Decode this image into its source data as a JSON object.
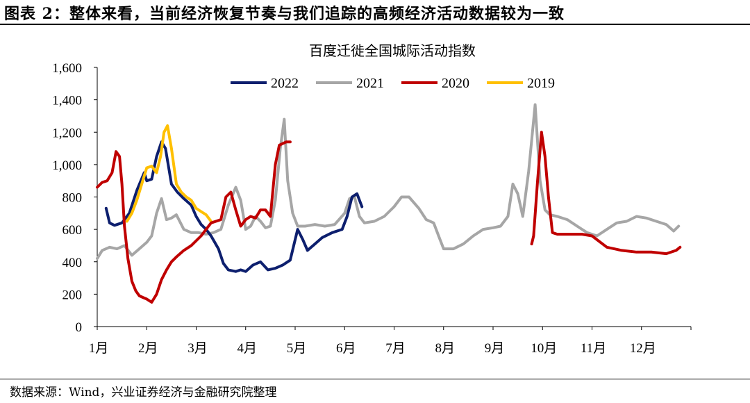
{
  "figure": {
    "title": "图表 2：整体来看，当前经济恢复节奏与我们追踪的高频经济活动数据较为一致",
    "source": "数据来源：Wind，兴业证券经济与金融研究院整理"
  },
  "chart_data": {
    "type": "line",
    "title": "百度迁徙全国城际活动指数",
    "xlabel": "",
    "ylabel": "",
    "ylim": [
      0,
      1600
    ],
    "xlim": [
      1,
      13
    ],
    "yticks": [
      0,
      200,
      400,
      600,
      800,
      1000,
      1200,
      1400,
      1600
    ],
    "ytick_labels": [
      "0",
      "200",
      "400",
      "600",
      "800",
      "1,000",
      "1,200",
      "1,400",
      "1,600"
    ],
    "xticks": [
      1,
      2,
      3,
      4,
      5,
      6,
      7,
      8,
      9,
      10,
      11,
      12,
      13
    ],
    "xtick_labels": [
      "1月",
      "2月",
      "3月",
      "4月",
      "5月",
      "6月",
      "7月",
      "8月",
      "9月",
      "10月",
      "11月",
      "12月",
      ""
    ],
    "legend_position": "top-center",
    "grid": false,
    "series": [
      {
        "name": "2022",
        "color": "#0d1f6e",
        "x": [
          1.18,
          1.25,
          1.35,
          1.5,
          1.65,
          1.8,
          1.95,
          2.0,
          2.1,
          2.2,
          2.3,
          2.38,
          2.5,
          2.62,
          2.75,
          2.9,
          3.0,
          3.1,
          3.2,
          3.3,
          3.45,
          3.55,
          3.65,
          3.8,
          3.9,
          4.0,
          4.15,
          4.3,
          4.45,
          4.6,
          4.75,
          4.9,
          5.05,
          5.15,
          5.25,
          5.4,
          5.55,
          5.75,
          5.95,
          6.05,
          6.15,
          6.25,
          6.35
        ],
        "y": [
          730,
          640,
          625,
          640,
          700,
          840,
          950,
          900,
          910,
          1050,
          1140,
          1100,
          880,
          830,
          790,
          750,
          680,
          630,
          600,
          560,
          480,
          390,
          350,
          340,
          350,
          340,
          380,
          400,
          350,
          360,
          380,
          410,
          600,
          540,
          470,
          510,
          550,
          580,
          600,
          680,
          800,
          820,
          740
        ]
      },
      {
        "name": "2021",
        "color": "#a6a6a6",
        "x": [
          1.0,
          1.1,
          1.25,
          1.4,
          1.55,
          1.7,
          1.85,
          2.0,
          2.1,
          2.2,
          2.3,
          2.4,
          2.5,
          2.6,
          2.75,
          2.9,
          3.05,
          3.2,
          3.35,
          3.5,
          3.65,
          3.8,
          3.9,
          4.0,
          4.1,
          4.2,
          4.3,
          4.4,
          4.5,
          4.6,
          4.7,
          4.78,
          4.85,
          4.95,
          5.05,
          5.2,
          5.4,
          5.6,
          5.8,
          6.0,
          6.1,
          6.2,
          6.3,
          6.4,
          6.6,
          6.8,
          7.0,
          7.15,
          7.3,
          7.5,
          7.65,
          7.8,
          7.9,
          8.0,
          8.2,
          8.4,
          8.6,
          8.8,
          9.0,
          9.15,
          9.3,
          9.4,
          9.5,
          9.6,
          9.72,
          9.85,
          9.95,
          10.05,
          10.15,
          10.3,
          10.5,
          10.7,
          10.9,
          11.1,
          11.3,
          11.5,
          11.7,
          11.9,
          12.1,
          12.3,
          12.5,
          12.65,
          12.75
        ],
        "y": [
          420,
          470,
          490,
          480,
          500,
          440,
          480,
          520,
          560,
          700,
          790,
          660,
          670,
          690,
          600,
          580,
          580,
          570,
          580,
          600,
          750,
          860,
          780,
          600,
          620,
          680,
          650,
          610,
          620,
          780,
          1100,
          1280,
          900,
          700,
          620,
          620,
          630,
          620,
          630,
          700,
          790,
          800,
          680,
          640,
          650,
          680,
          740,
          800,
          800,
          730,
          660,
          640,
          560,
          480,
          480,
          510,
          560,
          600,
          610,
          620,
          680,
          880,
          820,
          680,
          960,
          1370,
          900,
          720,
          690,
          680,
          660,
          620,
          580,
          560,
          600,
          640,
          650,
          680,
          670,
          650,
          630,
          590,
          620
        ]
      },
      {
        "name": "2020",
        "color": "#c00000",
        "x": [
          1.0,
          1.1,
          1.2,
          1.3,
          1.38,
          1.45,
          1.5,
          1.55,
          1.62,
          1.7,
          1.78,
          1.85,
          1.92,
          2.0,
          2.1,
          2.2,
          2.3,
          2.4,
          2.5,
          2.6,
          2.75,
          2.9,
          3.1,
          3.3,
          3.5,
          3.6,
          3.7,
          3.8,
          3.9,
          4.0,
          4.1,
          4.2,
          4.3,
          4.4,
          4.5,
          4.6,
          4.68,
          4.75,
          4.82,
          4.9,
          9.78,
          9.82,
          9.9,
          9.98,
          10.05,
          10.12,
          10.2,
          10.3,
          10.5,
          10.8,
          11.0,
          11.3,
          11.6,
          11.9,
          12.2,
          12.5,
          12.7,
          12.78
        ],
        "y": [
          860,
          890,
          900,
          950,
          1080,
          1050,
          880,
          620,
          420,
          280,
          220,
          190,
          180,
          170,
          150,
          200,
          290,
          350,
          400,
          430,
          470,
          500,
          560,
          640,
          660,
          800,
          830,
          720,
          620,
          660,
          680,
          670,
          720,
          720,
          680,
          1000,
          1120,
          1130,
          1140,
          1140,
          510,
          560,
          900,
          1200,
          1050,
          800,
          580,
          570,
          570,
          570,
          560,
          490,
          470,
          460,
          460,
          450,
          470,
          490
        ]
      },
      {
        "name": "2019",
        "color": "#ffc000",
        "x": [
          1.6,
          1.7,
          1.8,
          1.9,
          2.0,
          2.1,
          2.2,
          2.28,
          2.35,
          2.42,
          2.5,
          2.6,
          2.7,
          2.8,
          2.9,
          3.0,
          3.1,
          3.2,
          3.3
        ],
        "y": [
          650,
          700,
          780,
          880,
          980,
          990,
          950,
          1050,
          1200,
          1240,
          1100,
          880,
          830,
          800,
          780,
          730,
          710,
          690,
          650
        ]
      }
    ]
  }
}
